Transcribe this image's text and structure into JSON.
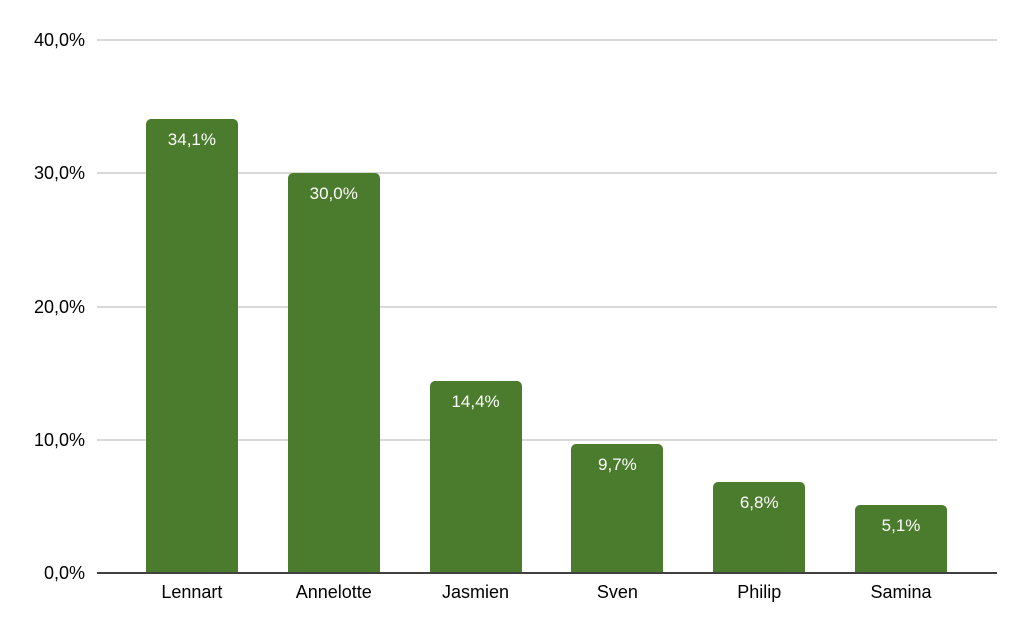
{
  "chart_data": {
    "type": "bar",
    "categories": [
      "Lennart",
      "Annelotte",
      "Jasmien",
      "Sven",
      "Philip",
      "Samina"
    ],
    "values": [
      34.1,
      30.0,
      14.4,
      9.7,
      6.8,
      5.1
    ],
    "value_labels": [
      "34,1%",
      "30,0%",
      "14,4%",
      "9,7%",
      "6,8%",
      "5,1%"
    ],
    "title": "",
    "xlabel": "",
    "ylabel": "",
    "ylim": [
      0,
      40
    ],
    "y_ticks": [
      0,
      10,
      20,
      30,
      40
    ],
    "y_tick_labels": [
      "0,0%",
      "10,0%",
      "20,0%",
      "30,0%",
      "40,0%"
    ],
    "grid": true,
    "legend": false,
    "colors": {
      "bar": "#4b7b2d",
      "bar_label_text": "#ffffff",
      "gridline": "#d9d9d9",
      "axis_line": "#404040",
      "tick_text": "#000000",
      "background": "#ffffff"
    }
  }
}
